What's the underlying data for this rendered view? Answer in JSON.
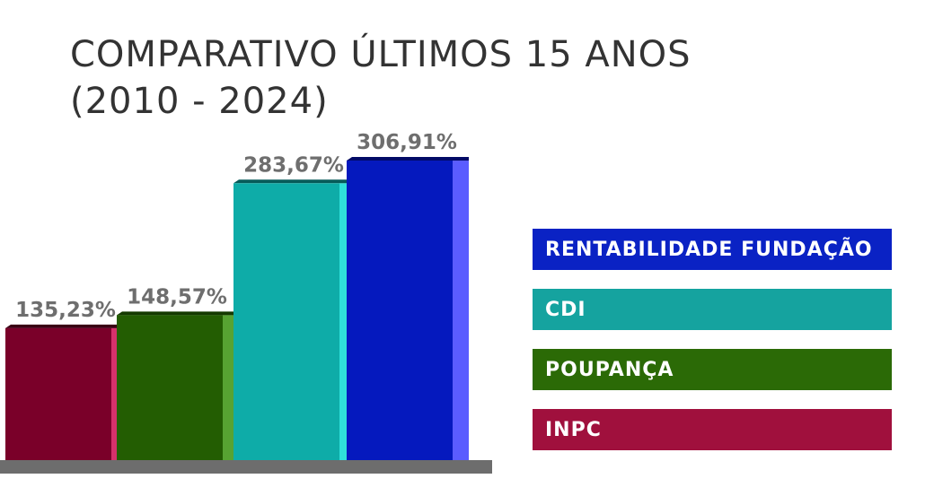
{
  "chart_data": {
    "type": "bar",
    "title_lines": [
      "COMPARATIVO ÚLTIMOS 15 ANOS",
      "(2010 - 2024)"
    ],
    "categories": [
      "INPC",
      "POUPANÇA",
      "CDI",
      "RENTABILIDADE FUNDAÇÃO"
    ],
    "values": [
      135.23,
      148.57,
      283.67,
      306.91
    ],
    "value_labels": [
      "135,23%",
      "148,57%",
      "283,67%",
      "306,91%"
    ],
    "ylim": [
      0,
      340
    ],
    "grid": false,
    "legend_placement": "right",
    "legend": [
      {
        "label": "RENTABILIDADE FUNDAÇÃO",
        "color": "#0a22c4"
      },
      {
        "label": "CDI",
        "color": "#15a39f"
      },
      {
        "label": "POUPANÇA",
        "color": "#2b6a06"
      },
      {
        "label": "INPC",
        "color": "#a0103d"
      }
    ],
    "bar_colors": [
      {
        "front": "#7a0029",
        "side": "#d6316b",
        "top": "#3a0014"
      },
      {
        "front": "#235d02",
        "side": "#57a332",
        "top": "#153a00"
      },
      {
        "front": "#0eaca8",
        "side": "#2fe0da",
        "top": "#075c5a"
      },
      {
        "front": "#0519be",
        "side": "#5a5cff",
        "top": "#020a66"
      }
    ],
    "base_color": "#6d6d6d"
  }
}
